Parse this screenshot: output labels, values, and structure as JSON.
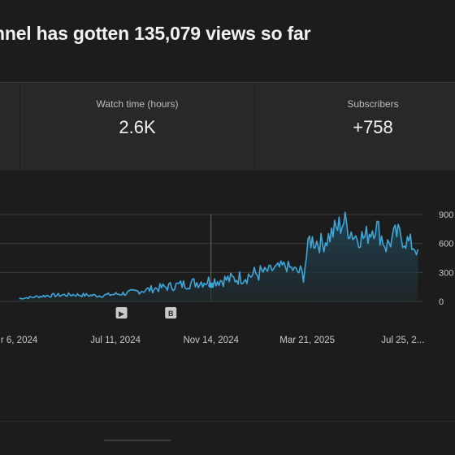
{
  "headline": "nnel has gotten 135,079 views so far",
  "stats": [
    {
      "label": "",
      "value": ""
    },
    {
      "label": "Watch time (hours)",
      "value": "2.6K"
    },
    {
      "label": "Subscribers",
      "value": "+758"
    }
  ],
  "colors": {
    "line": "#3ea6d8",
    "area_top": "#1f4a5c",
    "area_bottom": "#212b30",
    "grid": "#3d3d3d",
    "axis_text": "#c8c8c8"
  },
  "chart_data": {
    "type": "area",
    "series": [
      {
        "x": [
          "2024-03-06",
          "2024-04-11",
          "2024-05-16",
          "2024-06-20",
          "2024-07-25",
          "2024-08-29",
          "2024-10-03",
          "2024-11-07",
          "2024-12-12",
          "2025-01-16",
          "2025-02-20",
          "2025-03-16",
          "2025-03-24",
          "2025-04-10",
          "2025-05-08",
          "2025-05-22",
          "2025-06-05",
          "2025-06-19",
          "2025-07-03",
          "2025-07-17",
          "2025-07-31",
          "2025-08-14"
        ],
        "values": [
          30,
          60,
          70,
          60,
          85,
          130,
          170,
          210,
          230,
          290,
          370,
          280,
          640,
          600,
          830,
          680,
          660,
          800,
          570,
          700,
          620,
          540
        ]
      }
    ],
    "xlabels": [
      "r 6, 2024",
      "Jul 11, 2024",
      "Nov 14, 2024",
      "Mar 21, 2025",
      "Jul 25, 2..."
    ],
    "xticks": [
      "2024-03-06",
      "2024-07-11",
      "2024-11-14",
      "2025-03-21",
      "2025-07-25"
    ],
    "yticks": [
      "900",
      "600",
      "300",
      "0"
    ],
    "ylim": [
      0,
      900
    ],
    "xlim": [
      "2024-01-30",
      "2025-08-20"
    ],
    "grid": true,
    "vertical_marker": "2024-11-14",
    "markers": [
      {
        "date": "2024-07-19",
        "icon": "play-icon",
        "label": "▶"
      },
      {
        "date": "2024-09-22",
        "icon": "badge-icon",
        "label": "B"
      }
    ]
  }
}
